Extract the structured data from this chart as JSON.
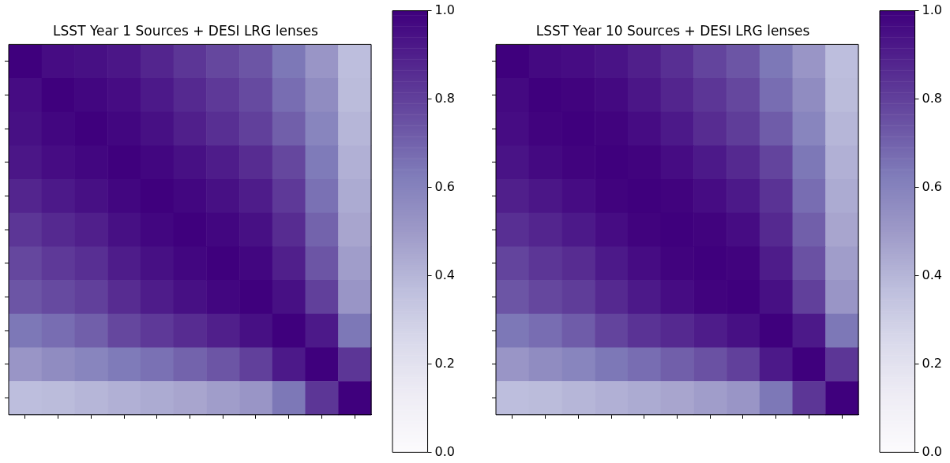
{
  "chart_data": [
    {
      "type": "heatmap",
      "title": "LSST Year 1 Sources + DESI LRG lenses",
      "categories": [
        null,
        null,
        null,
        null,
        null,
        null,
        null,
        null,
        null,
        null,
        null
      ],
      "y_categories": [
        null,
        null,
        null,
        null,
        null,
        null,
        null,
        null,
        null,
        null,
        null
      ],
      "cells": [
        [
          1,
          0.96,
          0.95,
          0.93,
          0.88,
          0.83,
          0.78,
          0.74,
          0.64,
          0.52,
          0.37
        ],
        [
          0.96,
          1,
          0.98,
          0.96,
          0.92,
          0.87,
          0.82,
          0.77,
          0.67,
          0.56,
          0.38
        ],
        [
          0.95,
          0.98,
          1,
          0.98,
          0.95,
          0.9,
          0.85,
          0.8,
          0.71,
          0.59,
          0.4
        ],
        [
          0.93,
          0.96,
          0.98,
          1,
          0.98,
          0.95,
          0.91,
          0.86,
          0.78,
          0.63,
          0.42
        ],
        [
          0.88,
          0.92,
          0.95,
          0.98,
          1,
          0.98,
          0.95,
          0.91,
          0.82,
          0.66,
          0.44
        ],
        [
          0.83,
          0.87,
          0.9,
          0.95,
          0.98,
          1,
          0.98,
          0.95,
          0.86,
          0.7,
          0.46
        ],
        [
          0.78,
          0.82,
          0.85,
          0.91,
          0.95,
          0.98,
          1,
          0.98,
          0.9,
          0.74,
          0.49
        ],
        [
          0.74,
          0.77,
          0.8,
          0.86,
          0.91,
          0.95,
          0.98,
          1,
          0.95,
          0.8,
          0.52
        ],
        [
          0.64,
          0.67,
          0.71,
          0.78,
          0.82,
          0.86,
          0.9,
          0.95,
          1,
          0.92,
          0.64
        ],
        [
          0.52,
          0.56,
          0.59,
          0.63,
          0.66,
          0.7,
          0.74,
          0.8,
          0.92,
          1,
          0.83
        ],
        [
          0.37,
          0.38,
          0.4,
          0.42,
          0.44,
          0.46,
          0.49,
          0.52,
          0.64,
          0.83,
          1
        ]
      ],
      "clim": [
        0,
        1
      ],
      "cticks": [
        {
          "value": 0,
          "label": "0.0"
        },
        {
          "value": 0.2,
          "label": "0.2"
        },
        {
          "value": 0.4,
          "label": "0.4"
        },
        {
          "value": 0.6,
          "label": "0.6"
        },
        {
          "value": 0.8,
          "label": "0.8"
        },
        {
          "value": 1,
          "label": "1.0"
        }
      ]
    },
    {
      "type": "heatmap",
      "title": "LSST Year 10 Sources + DESI LRG lenses",
      "categories": [
        null,
        null,
        null,
        null,
        null,
        null,
        null,
        null,
        null,
        null,
        null
      ],
      "y_categories": [
        null,
        null,
        null,
        null,
        null,
        null,
        null,
        null,
        null,
        null,
        null
      ],
      "cells": [
        [
          1,
          0.97,
          0.96,
          0.94,
          0.9,
          0.85,
          0.79,
          0.74,
          0.64,
          0.52,
          0.37
        ],
        [
          0.97,
          1,
          0.99,
          0.97,
          0.93,
          0.88,
          0.83,
          0.78,
          0.67,
          0.56,
          0.38
        ],
        [
          0.96,
          0.99,
          1,
          0.99,
          0.96,
          0.92,
          0.86,
          0.81,
          0.72,
          0.59,
          0.4
        ],
        [
          0.94,
          0.97,
          0.99,
          1,
          0.99,
          0.96,
          0.92,
          0.87,
          0.79,
          0.64,
          0.42
        ],
        [
          0.9,
          0.93,
          0.96,
          0.99,
          1,
          0.99,
          0.96,
          0.92,
          0.84,
          0.67,
          0.44
        ],
        [
          0.85,
          0.88,
          0.92,
          0.96,
          0.99,
          1,
          0.99,
          0.96,
          0.87,
          0.71,
          0.46
        ],
        [
          0.79,
          0.83,
          0.86,
          0.92,
          0.96,
          0.99,
          1,
          0.99,
          0.91,
          0.75,
          0.49
        ],
        [
          0.74,
          0.78,
          0.81,
          0.87,
          0.92,
          0.96,
          0.99,
          1,
          0.95,
          0.8,
          0.52
        ],
        [
          0.64,
          0.67,
          0.72,
          0.79,
          0.84,
          0.87,
          0.91,
          0.95,
          1,
          0.92,
          0.64
        ],
        [
          0.52,
          0.56,
          0.59,
          0.64,
          0.67,
          0.71,
          0.75,
          0.8,
          0.92,
          1,
          0.83
        ],
        [
          0.37,
          0.38,
          0.4,
          0.42,
          0.44,
          0.46,
          0.49,
          0.52,
          0.64,
          0.83,
          1
        ]
      ],
      "clim": [
        0,
        1
      ],
      "cticks": [
        {
          "value": 0,
          "label": "0.0"
        },
        {
          "value": 0.2,
          "label": "0.2"
        },
        {
          "value": 0.4,
          "label": "0.4"
        },
        {
          "value": 0.6,
          "label": "0.6"
        },
        {
          "value": 0.8,
          "label": "0.8"
        },
        {
          "value": 1,
          "label": "1.0"
        }
      ]
    }
  ]
}
